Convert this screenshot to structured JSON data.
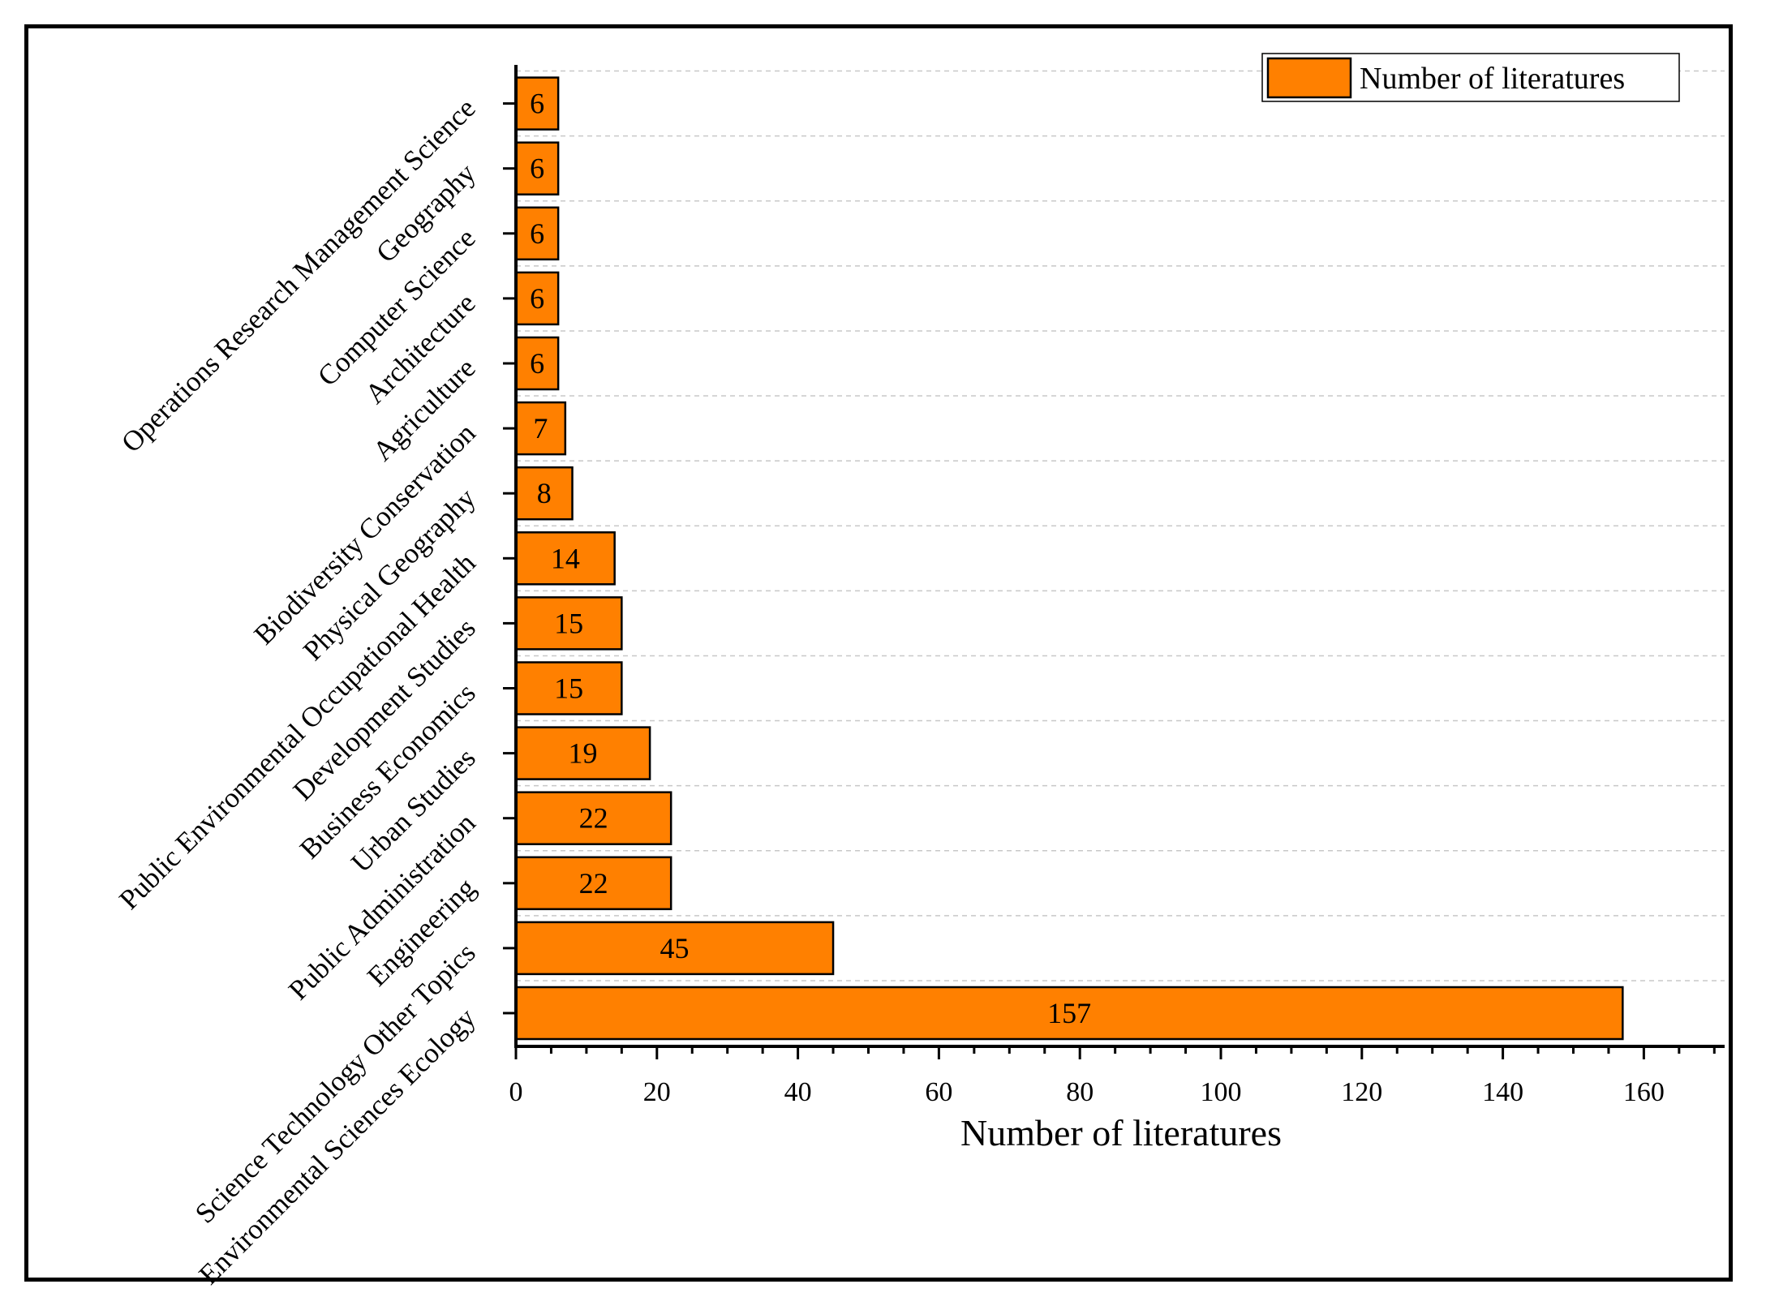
{
  "chart_data": {
    "type": "bar",
    "orientation": "horizontal",
    "title": "",
    "xlabel": "Number of literatures",
    "ylabel": "",
    "xlim": [
      0,
      172
    ],
    "xticks": [
      0,
      20,
      40,
      60,
      80,
      100,
      120,
      140,
      160
    ],
    "grid": "dashed horizontal",
    "legend": {
      "position": "top-right",
      "entries": [
        "Number of literatures"
      ]
    },
    "categories": [
      "Environmental Sciences Ecology",
      "Science Technology Other Topics",
      "Engineering",
      "Public Administration",
      "Urban Studies",
      "Business Economics",
      "Development Studies",
      "Public Environmental Occupational Health",
      "Physical Geography",
      "Biodiversity Conservation",
      "Agriculture",
      "Architecture",
      "Computer Science",
      "Geography",
      "Operations Research Management Science"
    ],
    "series": [
      {
        "name": "Number of literatures",
        "color": "#ff8000",
        "values": [
          157,
          45,
          22,
          22,
          19,
          15,
          15,
          14,
          8,
          7,
          6,
          6,
          6,
          6,
          6
        ],
        "labels": [
          "157",
          "45",
          "22",
          "22",
          "19",
          "15",
          "15",
          "14",
          "8",
          "7",
          "6",
          "6",
          "6",
          "6",
          "6"
        ]
      }
    ]
  }
}
